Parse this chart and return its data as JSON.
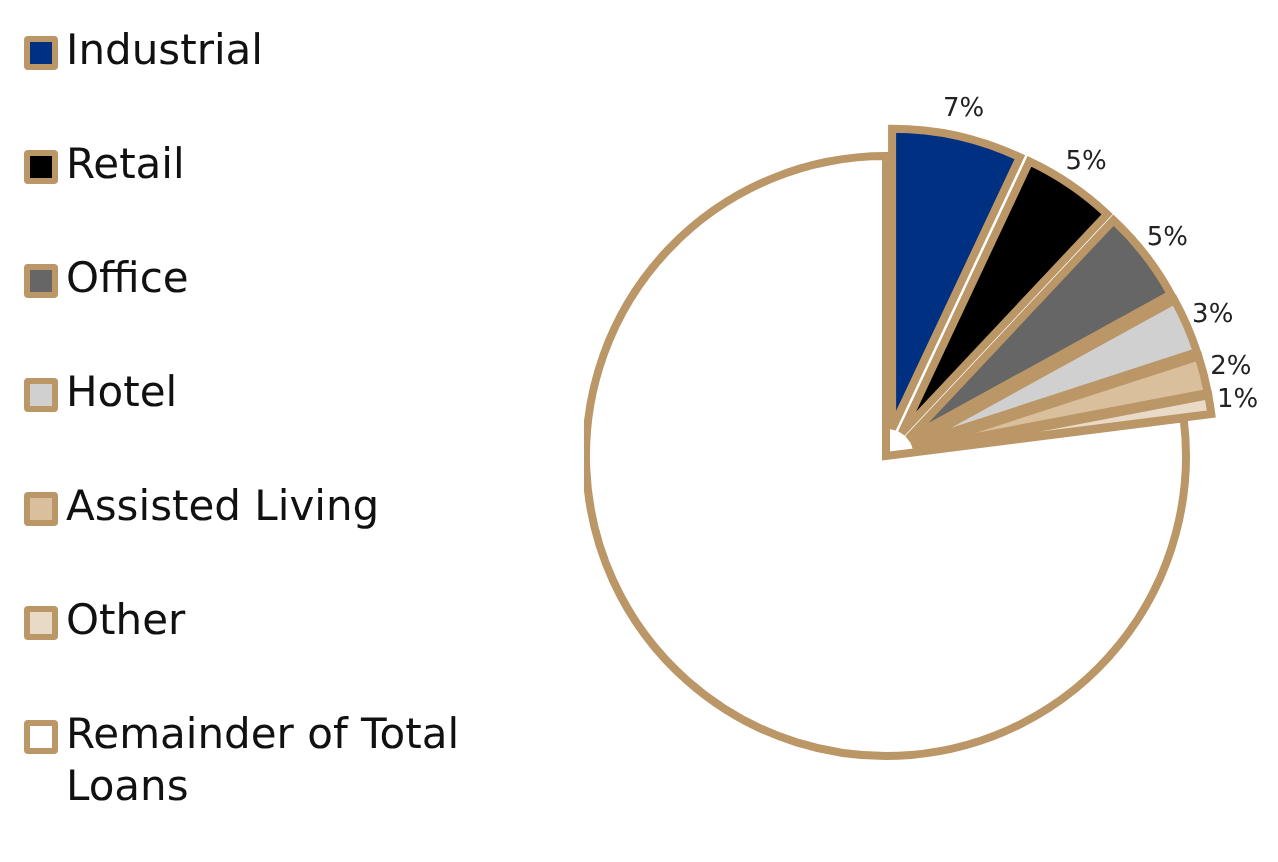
{
  "chart_data": {
    "type": "pie",
    "categories": [
      "Industrial",
      "Retail",
      "Office",
      "Hotel",
      "Assisted Living",
      "Other",
      "Remainder of Total Loans"
    ],
    "values": [
      7,
      5,
      5,
      3,
      2,
      1,
      77
    ],
    "colors": [
      "#003082",
      "#000000",
      "#666666",
      "#d0d0d0",
      "#d9bf9c",
      "#e8dac6",
      "#ffffff"
    ],
    "value_labels": [
      "7%",
      "5%",
      "5%",
      "3%",
      "2%",
      "1%",
      null
    ],
    "legend": "left"
  }
}
